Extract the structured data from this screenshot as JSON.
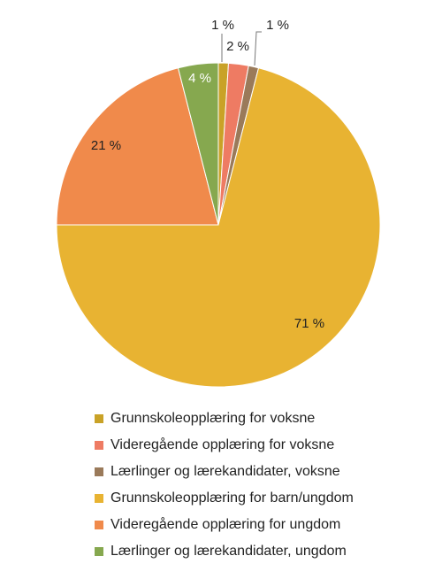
{
  "chart_data": {
    "type": "pie",
    "slices": [
      {
        "name": "Grunnskoleopplæring for voksne",
        "value": 1,
        "label": "1 %",
        "color": "#c9a227"
      },
      {
        "name": "Videregående opplæring for voksne",
        "value": 2,
        "label": "2 %",
        "color": "#ee7b63"
      },
      {
        "name": "Lærlinger og lærekandidater, voksne",
        "value": 1,
        "label": "1 %",
        "color": "#9a7a5a"
      },
      {
        "name": "Grunnskoleopplæring for barn/ungdom",
        "value": 71,
        "label": "71 %",
        "color": "#e8b332"
      },
      {
        "name": "Videregående opplæring for ungdom",
        "value": 21,
        "label": "21 %",
        "color": "#f08a4b"
      },
      {
        "name": "Lærlinger og lærekandidater, ungdom",
        "value": 4,
        "label": "4 %",
        "color": "#86a84f"
      }
    ],
    "start_angle_deg": 0,
    "direction": "clockwise",
    "legend_position": "bottom"
  },
  "legend": {
    "items": [
      {
        "label": "Grunnskoleopplæring for voksne",
        "color": "#c9a227"
      },
      {
        "label": "Videregående opplæring for voksne",
        "color": "#ee7b63"
      },
      {
        "label": "Lærlinger og lærekandidater, voksne",
        "color": "#9a7a5a"
      },
      {
        "label": "Grunnskoleopplæring for barn/ungdom",
        "color": "#e8b332"
      },
      {
        "label": "Videregående opplæring for ungdom",
        "color": "#f08a4b"
      },
      {
        "label": "Lærlinger og lærekandidater, ungdom",
        "color": "#86a84f"
      }
    ]
  }
}
